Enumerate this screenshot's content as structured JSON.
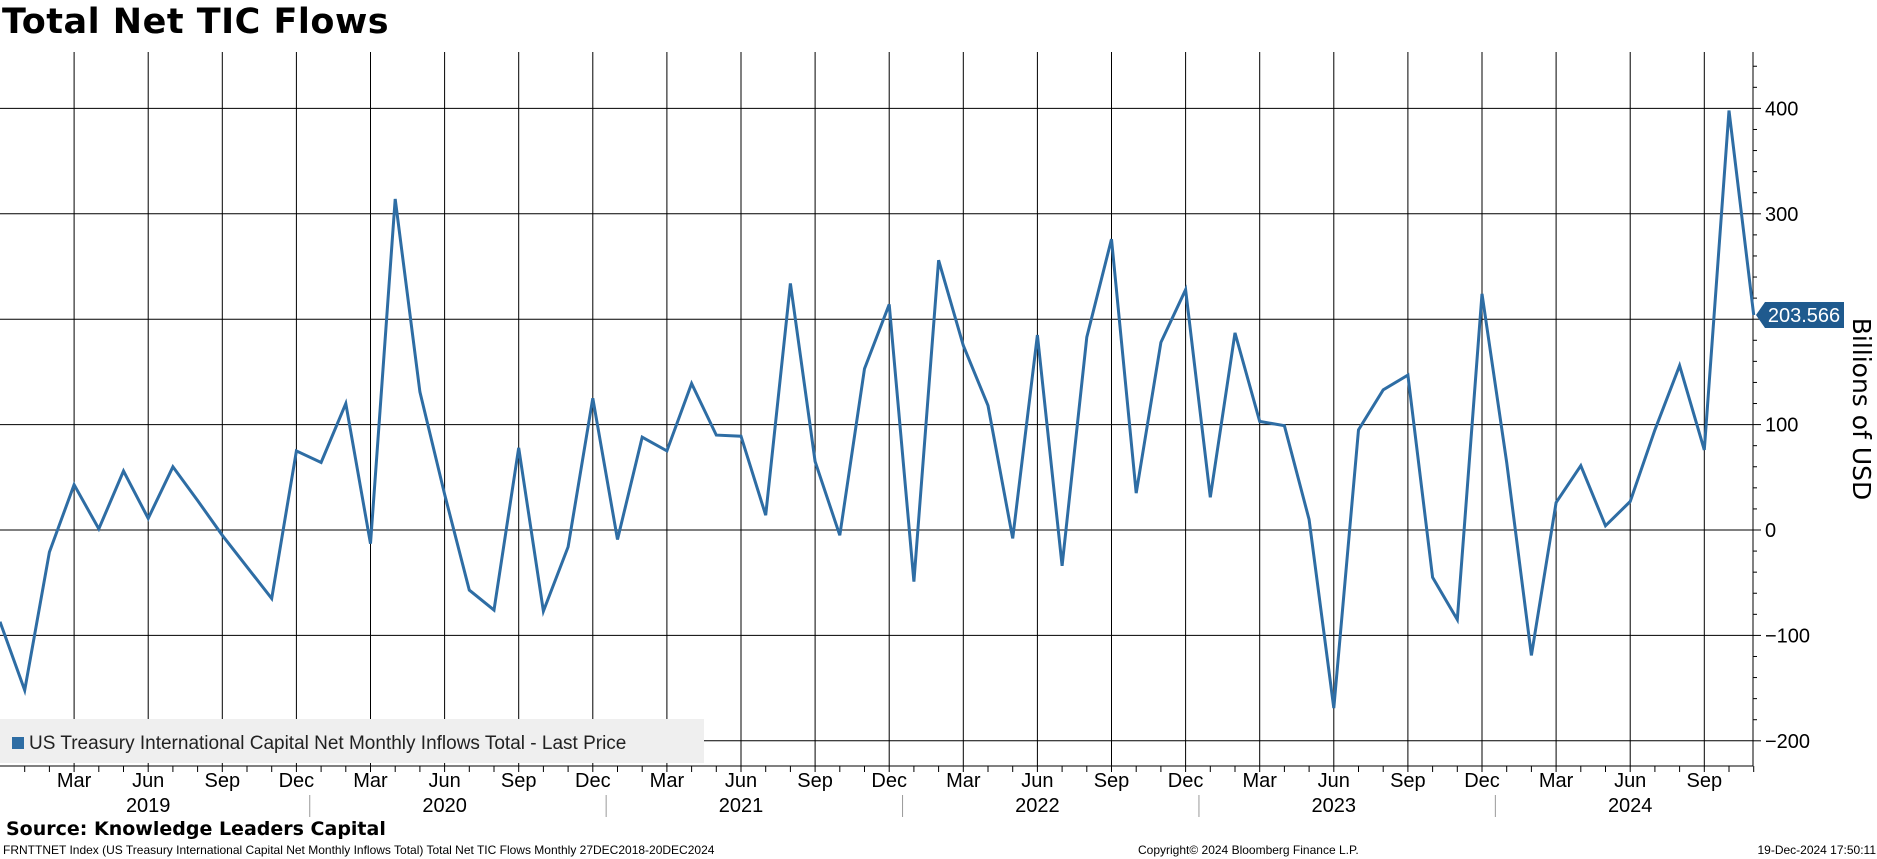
{
  "chart_data": {
    "type": "line",
    "title": "Total Net TIC Flows",
    "ylabel": "Billions of USD",
    "xlabel": "",
    "ylim": [
      -222,
      455
    ],
    "y_ticks": [
      400,
      300,
      200,
      100,
      0,
      -100,
      -200
    ],
    "grid": true,
    "legend_position": "bottom-left",
    "last_value_label": "203.566",
    "month_labels": [
      "Mar",
      "Jun",
      "Sep",
      "Dec",
      "Mar",
      "Jun",
      "Sep",
      "Dec",
      "Mar",
      "Jun",
      "Sep",
      "Dec",
      "Mar",
      "Jun",
      "Sep",
      "Dec",
      "Mar",
      "Jun",
      "Sep",
      "Dec",
      "Mar",
      "Jun",
      "Sep"
    ],
    "year_labels": [
      "2019",
      "2020",
      "2021",
      "2022",
      "2023",
      "2024"
    ],
    "series": [
      {
        "name": "US Treasury International Capital Net Monthly Inflows Total - Last Price",
        "color": "#2e6da4",
        "start": "2018-12",
        "values": [
          -87,
          -152,
          -21,
          43,
          1,
          56,
          11,
          60,
          28,
          -5,
          -35,
          -65,
          75,
          64,
          120,
          -13,
          314,
          131,
          34,
          -57,
          -76,
          78,
          -77,
          -16,
          125,
          -9,
          88,
          75,
          139,
          90,
          89,
          14,
          234,
          65,
          -5,
          153,
          214,
          -49,
          256,
          175,
          118,
          -8,
          185,
          -34,
          183,
          276,
          35,
          178,
          228,
          31,
          187,
          103,
          99,
          10,
          -169,
          95,
          133,
          147,
          -45,
          -85,
          224,
          64,
          -119,
          26,
          61,
          4,
          27,
          95,
          156,
          76,
          398,
          204
        ]
      }
    ]
  },
  "source": "Source: Knowledge Leaders Capital",
  "footer": {
    "description": "FRNTTNET Index (US Treasury International Capital Net Monthly Inflows Total) Total Net TIC Flows  Monthly 27DEC2018-20DEC2024",
    "copyright": "Copyright© 2024 Bloomberg Finance L.P.",
    "timestamp": "19-Dec-2024 17:50:11"
  }
}
